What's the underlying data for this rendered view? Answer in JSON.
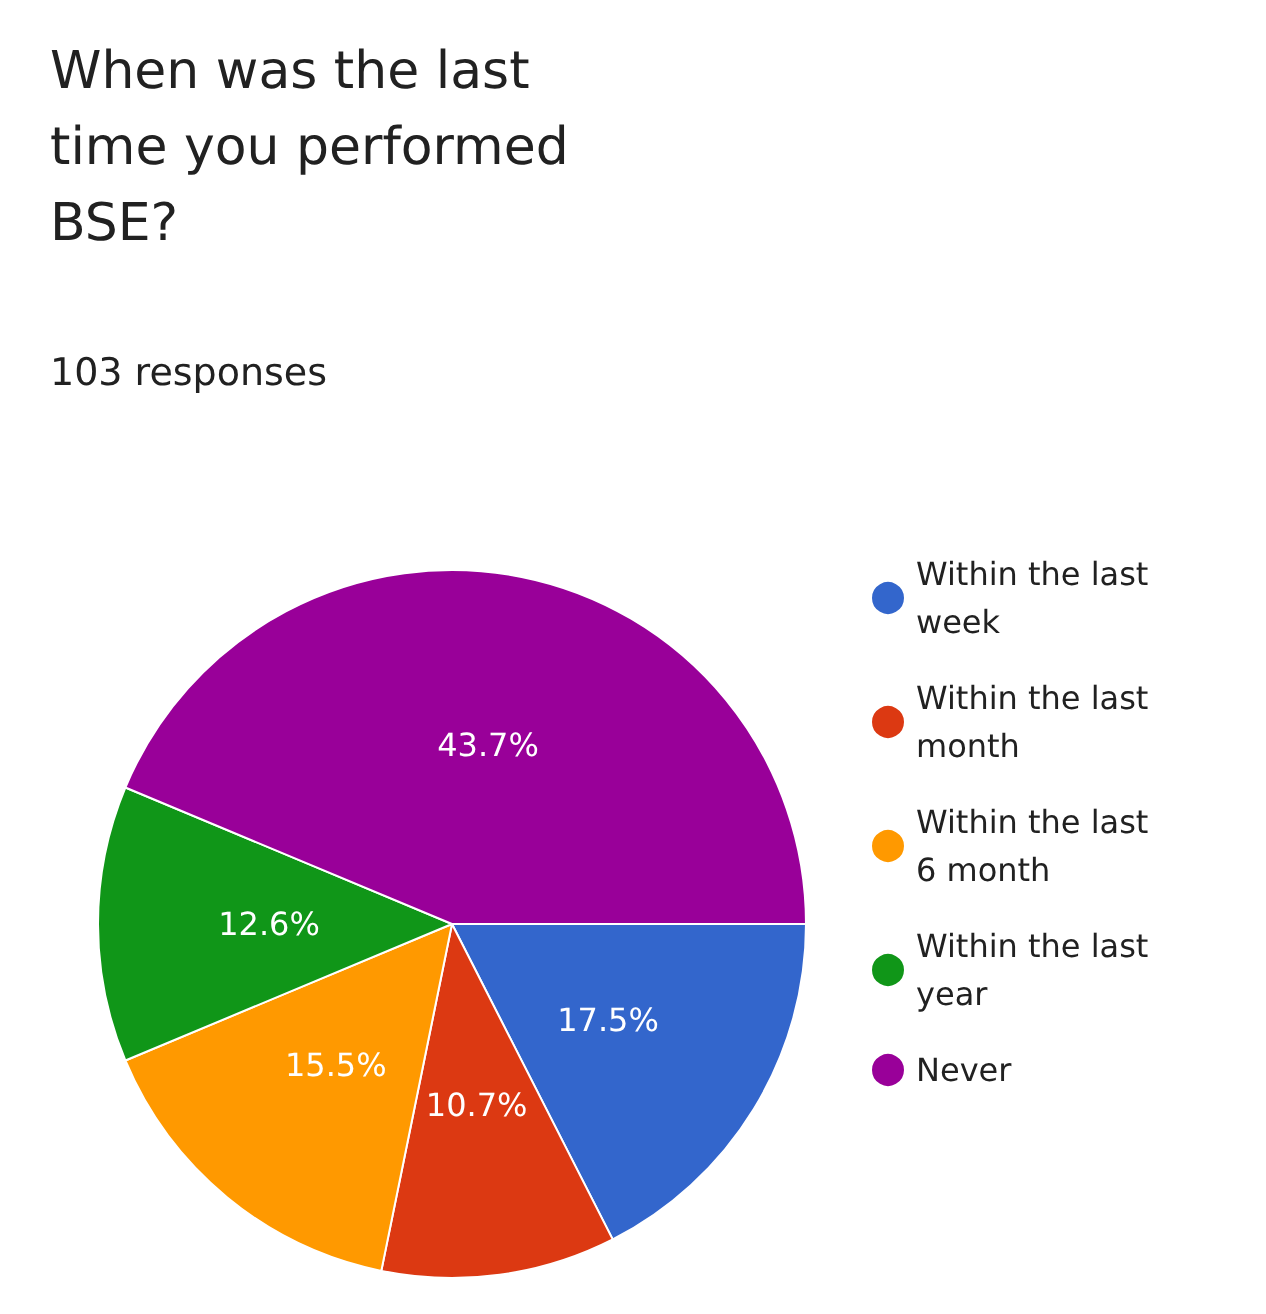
{
  "chart_data": {
    "type": "pie",
    "title": "When was the last time you performed BSE?",
    "subtitle": "103 responses",
    "categories": [
      "Within the last week",
      "Within the last month",
      "Within the last 6 month",
      "Within the last year",
      "Never"
    ],
    "values": [
      17.5,
      10.7,
      15.5,
      12.6,
      43.7
    ],
    "colors": [
      "#3366cc",
      "#dc3912",
      "#ff9900",
      "#109618",
      "#990099"
    ],
    "value_labels": [
      "17.5%",
      "10.7%",
      "15.5%",
      "12.6%",
      "43.7%"
    ],
    "legend": "right"
  }
}
